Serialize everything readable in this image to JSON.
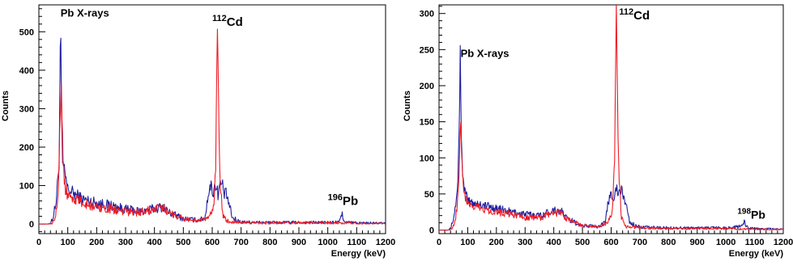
{
  "chart_data": [
    {
      "type": "line",
      "xlabel": "Energy (keV)",
      "ylabel": "Counts",
      "xlim": [
        0,
        1200
      ],
      "ylim": [
        -25,
        570
      ],
      "xticks": [
        0,
        100,
        200,
        300,
        400,
        500,
        600,
        700,
        800,
        900,
        1000,
        1100,
        1200
      ],
      "yticks": [
        0,
        100,
        200,
        300,
        400,
        500
      ],
      "grid": false,
      "colors": {
        "blue": "#1f1f9e",
        "red": "#ee1c25"
      },
      "annotations": [
        {
          "base": "Pb X-rays",
          "sup": "",
          "x": 75,
          "y": 540
        },
        {
          "base": "Cd",
          "sup": "112",
          "x": 600,
          "y": 515
        },
        {
          "base": "Pb",
          "sup": "196",
          "x": 1000,
          "y": 50
        }
      ],
      "series": [
        {
          "color": "blue",
          "values": [
            [
              0,
              0
            ],
            [
              30,
              0
            ],
            [
              40,
              2
            ],
            [
              50,
              20
            ],
            [
              60,
              60
            ],
            [
              65,
              110
            ],
            [
              70,
              160
            ],
            [
              72,
              300
            ],
            [
              75,
              550
            ],
            [
              78,
              300
            ],
            [
              82,
              160
            ],
            [
              90,
              130
            ],
            [
              100,
              90
            ],
            [
              150,
              65
            ],
            [
              200,
              55
            ],
            [
              250,
              48
            ],
            [
              300,
              38
            ],
            [
              350,
              33
            ],
            [
              400,
              40
            ],
            [
              430,
              45
            ],
            [
              450,
              30
            ],
            [
              500,
              14
            ],
            [
              550,
              10
            ],
            [
              575,
              15
            ],
            [
              585,
              75
            ],
            [
              595,
              100
            ],
            [
              605,
              80
            ],
            [
              610,
              110
            ],
            [
              615,
              90
            ],
            [
              620,
              80
            ],
            [
              625,
              100
            ],
            [
              635,
              105
            ],
            [
              640,
              80
            ],
            [
              650,
              75
            ],
            [
              660,
              45
            ],
            [
              670,
              15
            ],
            [
              700,
              5
            ],
            [
              800,
              4
            ],
            [
              900,
              4
            ],
            [
              1000,
              4
            ],
            [
              1040,
              5
            ],
            [
              1045,
              18
            ],
            [
              1050,
              25
            ],
            [
              1055,
              14
            ],
            [
              1060,
              5
            ],
            [
              1100,
              3
            ],
            [
              1200,
              2
            ]
          ]
        },
        {
          "color": "red",
          "values": [
            [
              0,
              0
            ],
            [
              30,
              0
            ],
            [
              45,
              2
            ],
            [
              55,
              15
            ],
            [
              62,
              50
            ],
            [
              68,
              110
            ],
            [
              72,
              250
            ],
            [
              75,
              280
            ],
            [
              78,
              380
            ],
            [
              80,
              270
            ],
            [
              85,
              140
            ],
            [
              90,
              100
            ],
            [
              100,
              75
            ],
            [
              150,
              55
            ],
            [
              200,
              45
            ],
            [
              250,
              38
            ],
            [
              300,
              32
            ],
            [
              350,
              30
            ],
            [
              400,
              38
            ],
            [
              430,
              42
            ],
            [
              450,
              30
            ],
            [
              500,
              14
            ],
            [
              550,
              8
            ],
            [
              580,
              12
            ],
            [
              595,
              25
            ],
            [
              605,
              40
            ],
            [
              612,
              150
            ],
            [
              615,
              380
            ],
            [
              618,
              505
            ],
            [
              621,
              380
            ],
            [
              625,
              150
            ],
            [
              635,
              25
            ],
            [
              650,
              8
            ],
            [
              700,
              4
            ],
            [
              800,
              3
            ],
            [
              1000,
              3
            ],
            [
              1100,
              2
            ],
            [
              1200,
              1
            ]
          ]
        }
      ]
    },
    {
      "type": "line",
      "xlabel": "Energy (keV)",
      "ylabel": "Counts",
      "xlim": [
        0,
        1200
      ],
      "ylim": [
        -5,
        312
      ],
      "xticks": [
        0,
        100,
        200,
        300,
        400,
        500,
        600,
        700,
        800,
        900,
        1000,
        1100,
        1200
      ],
      "yticks": [
        0,
        50,
        100,
        150,
        200,
        250,
        300
      ],
      "grid": false,
      "colors": {
        "blue": "#1f1f9e",
        "red": "#ee1c25"
      },
      "annotations": [
        {
          "base": "Pb X-rays",
          "sup": "",
          "x": 75,
          "y": 240
        },
        {
          "base": "Cd",
          "sup": "112",
          "x": 628,
          "y": 292
        },
        {
          "base": "Pb",
          "sup": "198",
          "x": 1040,
          "y": 16
        }
      ],
      "series": [
        {
          "color": "blue",
          "values": [
            [
              0,
              0
            ],
            [
              30,
              0
            ],
            [
              40,
              2
            ],
            [
              50,
              15
            ],
            [
              60,
              40
            ],
            [
              65,
              65
            ],
            [
              70,
              130
            ],
            [
              74,
              250
            ],
            [
              78,
              130
            ],
            [
              82,
              70
            ],
            [
              90,
              55
            ],
            [
              100,
              40
            ],
            [
              150,
              35
            ],
            [
              200,
              30
            ],
            [
              250,
              25
            ],
            [
              300,
              22
            ],
            [
              350,
              20
            ],
            [
              400,
              28
            ],
            [
              430,
              25
            ],
            [
              450,
              15
            ],
            [
              500,
              6
            ],
            [
              550,
              5
            ],
            [
              580,
              10
            ],
            [
              590,
              40
            ],
            [
              600,
              50
            ],
            [
              610,
              45
            ],
            [
              615,
              60
            ],
            [
              625,
              50
            ],
            [
              635,
              55
            ],
            [
              645,
              45
            ],
            [
              655,
              30
            ],
            [
              665,
              10
            ],
            [
              700,
              4
            ],
            [
              800,
              3
            ],
            [
              900,
              3
            ],
            [
              1000,
              3
            ],
            [
              1055,
              5
            ],
            [
              1060,
              10
            ],
            [
              1065,
              12
            ],
            [
              1070,
              5
            ],
            [
              1100,
              2
            ],
            [
              1200,
              1
            ]
          ]
        },
        {
          "color": "red",
          "values": [
            [
              0,
              0
            ],
            [
              30,
              0
            ],
            [
              45,
              2
            ],
            [
              55,
              10
            ],
            [
              62,
              30
            ],
            [
              68,
              60
            ],
            [
              72,
              110
            ],
            [
              75,
              160
            ],
            [
              78,
              110
            ],
            [
              85,
              65
            ],
            [
              90,
              45
            ],
            [
              100,
              35
            ],
            [
              150,
              30
            ],
            [
              200,
              25
            ],
            [
              250,
              22
            ],
            [
              300,
              18
            ],
            [
              350,
              17
            ],
            [
              400,
              24
            ],
            [
              430,
              22
            ],
            [
              450,
              14
            ],
            [
              500,
              6
            ],
            [
              550,
              4
            ],
            [
              580,
              8
            ],
            [
              595,
              15
            ],
            [
              605,
              25
            ],
            [
              612,
              100
            ],
            [
              615,
              220
            ],
            [
              618,
              305
            ],
            [
              621,
              220
            ],
            [
              625,
              100
            ],
            [
              635,
              20
            ],
            [
              650,
              5
            ],
            [
              700,
              3
            ],
            [
              800,
              2
            ],
            [
              1000,
              2
            ],
            [
              1100,
              1
            ],
            [
              1200,
              1
            ]
          ]
        }
      ]
    }
  ]
}
